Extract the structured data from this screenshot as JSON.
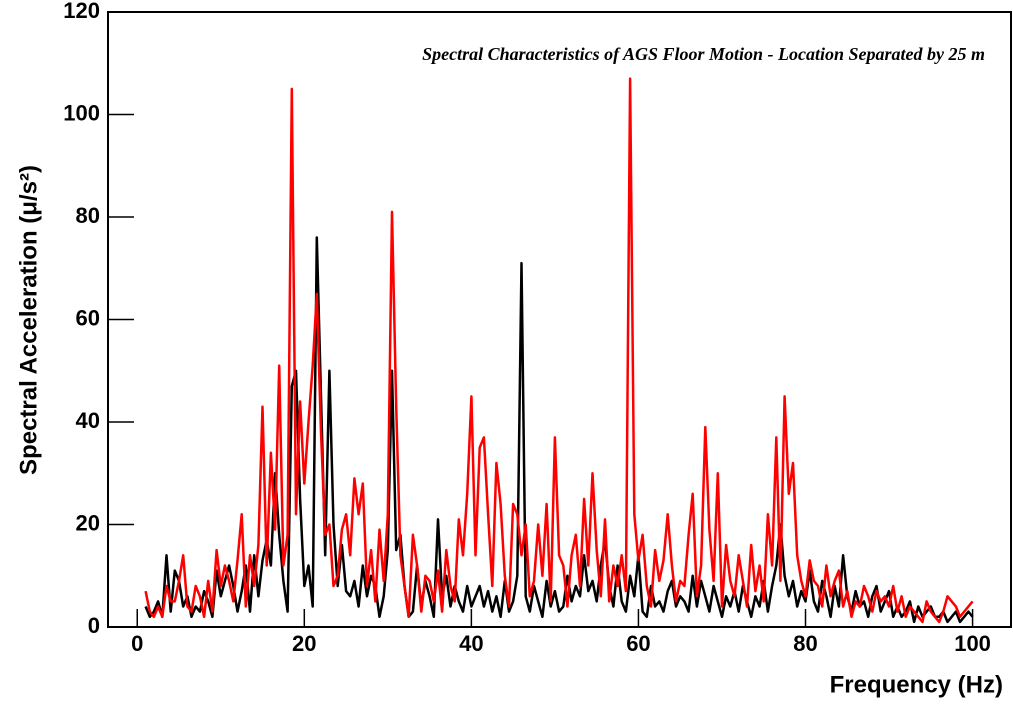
{
  "chart_data": {
    "type": "line",
    "title": "Spectral Characteristics of AGS Floor Motion - Location Separated by 25 m",
    "x_label": "Frequency (Hz)",
    "y_label": "Spectral Acceleration (μ/s²)",
    "xlim": [
      -3.5,
      104.6
    ],
    "ylim": [
      0,
      120
    ],
    "xticks": [
      0,
      20,
      40,
      60,
      80,
      100
    ],
    "yticks": [
      0,
      20,
      40,
      60,
      80,
      100,
      120
    ],
    "x": [
      1,
      1.5,
      2,
      2.5,
      3,
      3.5,
      4,
      4.5,
      5,
      5.5,
      6,
      6.5,
      7,
      7.5,
      8,
      8.5,
      9,
      9.5,
      10,
      10.5,
      11,
      11.5,
      12,
      12.5,
      13,
      13.5,
      14,
      14.5,
      15,
      15.5,
      16,
      16.5,
      17,
      17.5,
      18,
      18.5,
      19,
      19.5,
      20,
      20.5,
      21,
      21.5,
      22,
      22.5,
      23,
      23.5,
      24,
      24.5,
      25,
      25.5,
      26,
      26.5,
      27,
      27.5,
      28,
      28.5,
      29,
      29.5,
      30,
      30.5,
      31,
      31.5,
      32,
      32.5,
      33,
      33.5,
      34,
      34.5,
      35,
      35.5,
      36,
      36.5,
      37,
      37.5,
      38,
      38.5,
      39,
      39.5,
      40,
      40.5,
      41,
      41.5,
      42,
      42.5,
      43,
      43.5,
      44,
      44.5,
      45,
      45.5,
      46,
      46.5,
      47,
      47.5,
      48,
      48.5,
      49,
      49.5,
      50,
      50.5,
      51,
      51.5,
      52,
      52.5,
      53,
      53.5,
      54,
      54.5,
      55,
      55.5,
      56,
      56.5,
      57,
      57.5,
      58,
      58.5,
      59,
      59.5,
      60,
      60.5,
      61,
      61.5,
      62,
      62.5,
      63,
      63.5,
      64,
      64.5,
      65,
      65.5,
      66,
      66.5,
      67,
      67.5,
      68,
      68.5,
      69,
      69.5,
      70,
      70.5,
      71,
      71.5,
      72,
      72.5,
      73,
      73.5,
      74,
      74.5,
      75,
      75.5,
      76,
      76.5,
      77,
      77.5,
      78,
      78.5,
      79,
      79.5,
      80,
      80.5,
      81,
      81.5,
      82,
      82.5,
      83,
      83.5,
      84,
      84.5,
      85,
      85.5,
      86,
      86.5,
      87,
      87.5,
      88,
      88.5,
      89,
      89.5,
      90,
      90.5,
      91,
      91.5,
      92,
      92.5,
      93,
      93.5,
      94,
      94.5,
      95,
      95.5,
      96,
      96.5,
      97,
      97.5,
      98,
      98.5,
      99,
      99.5,
      100
    ],
    "series": [
      {
        "color": "#000000",
        "values": [
          4,
          2,
          3,
          5,
          2,
          14,
          3,
          11,
          9,
          4,
          6,
          2,
          4,
          3,
          7,
          5,
          2,
          11,
          6,
          9,
          12,
          8,
          3,
          7,
          12,
          3,
          14,
          6,
          13,
          17,
          12,
          30,
          18,
          9,
          3,
          47,
          50,
          25,
          8,
          12,
          4,
          76,
          45,
          14,
          50,
          20,
          8,
          16,
          7,
          6,
          9,
          4,
          12,
          6,
          10,
          8,
          2,
          6,
          15,
          50,
          15,
          18,
          8,
          2,
          3,
          12,
          4,
          9,
          6,
          2,
          21,
          6,
          10,
          4,
          8,
          5,
          3,
          8,
          4,
          6,
          8,
          4,
          7,
          3,
          6,
          2,
          9,
          3,
          5,
          10,
          71,
          6,
          3,
          8,
          5,
          2,
          9,
          4,
          7,
          3,
          4,
          10,
          5,
          8,
          6,
          14,
          7,
          9,
          5,
          12,
          17,
          8,
          4,
          12,
          5,
          3,
          10,
          6,
          14,
          3,
          2,
          8,
          4,
          5,
          3,
          7,
          9,
          4,
          6,
          5,
          3,
          10,
          4,
          9,
          6,
          3,
          8,
          5,
          2,
          6,
          4,
          7,
          3,
          8,
          5,
          2,
          6,
          4,
          9,
          3,
          8,
          12,
          20,
          10,
          6,
          9,
          4,
          7,
          5,
          11,
          5,
          3,
          9,
          6,
          2,
          8,
          4,
          14,
          6,
          3,
          7,
          4,
          5,
          2,
          6,
          8,
          3,
          5,
          7,
          2,
          4,
          2,
          3,
          5,
          1,
          4,
          2,
          3,
          4,
          2,
          2,
          3,
          1,
          2,
          3,
          1,
          2,
          3,
          2
        ]
      },
      {
        "color": "#ff0000",
        "values": [
          7,
          3,
          2,
          4,
          2,
          8,
          5,
          5,
          9,
          14,
          4,
          3,
          8,
          6,
          2,
          9,
          3,
          15,
          8,
          12,
          9,
          5,
          13,
          22,
          4,
          14,
          8,
          16,
          43,
          12,
          34,
          19,
          51,
          12,
          18,
          105,
          22,
          44,
          28,
          40,
          51,
          65,
          38,
          18,
          20,
          8,
          10,
          19,
          22,
          14,
          29,
          22,
          28,
          8,
          15,
          5,
          19,
          9,
          22,
          81,
          43,
          14,
          8,
          2,
          18,
          12,
          3,
          10,
          9,
          5,
          11,
          3,
          15,
          8,
          5,
          21,
          14,
          26,
          45,
          14,
          35,
          37,
          22,
          8,
          32,
          24,
          10,
          4,
          24,
          22,
          14,
          20,
          6,
          9,
          20,
          10,
          24,
          5,
          37,
          14,
          12,
          4,
          14,
          18,
          8,
          25,
          12,
          30,
          15,
          6,
          21,
          5,
          12,
          8,
          14,
          7,
          107,
          22,
          13,
          18,
          8,
          4,
          15,
          9,
          13,
          22,
          12,
          5,
          9,
          8,
          18,
          26,
          6,
          12,
          39,
          19,
          9,
          30,
          4,
          16,
          9,
          6,
          14,
          9,
          4,
          16,
          7,
          12,
          5,
          22,
          12,
          37,
          9,
          45,
          26,
          32,
          14,
          9,
          6,
          13,
          9,
          8,
          4,
          12,
          6,
          9,
          11,
          4,
          7,
          2,
          5,
          4,
          8,
          6,
          3,
          7,
          5,
          6,
          4,
          8,
          3,
          6,
          2,
          4,
          3,
          2,
          1,
          5,
          3,
          2,
          1,
          3,
          6,
          5,
          4,
          2,
          3,
          4,
          5
        ]
      }
    ]
  }
}
